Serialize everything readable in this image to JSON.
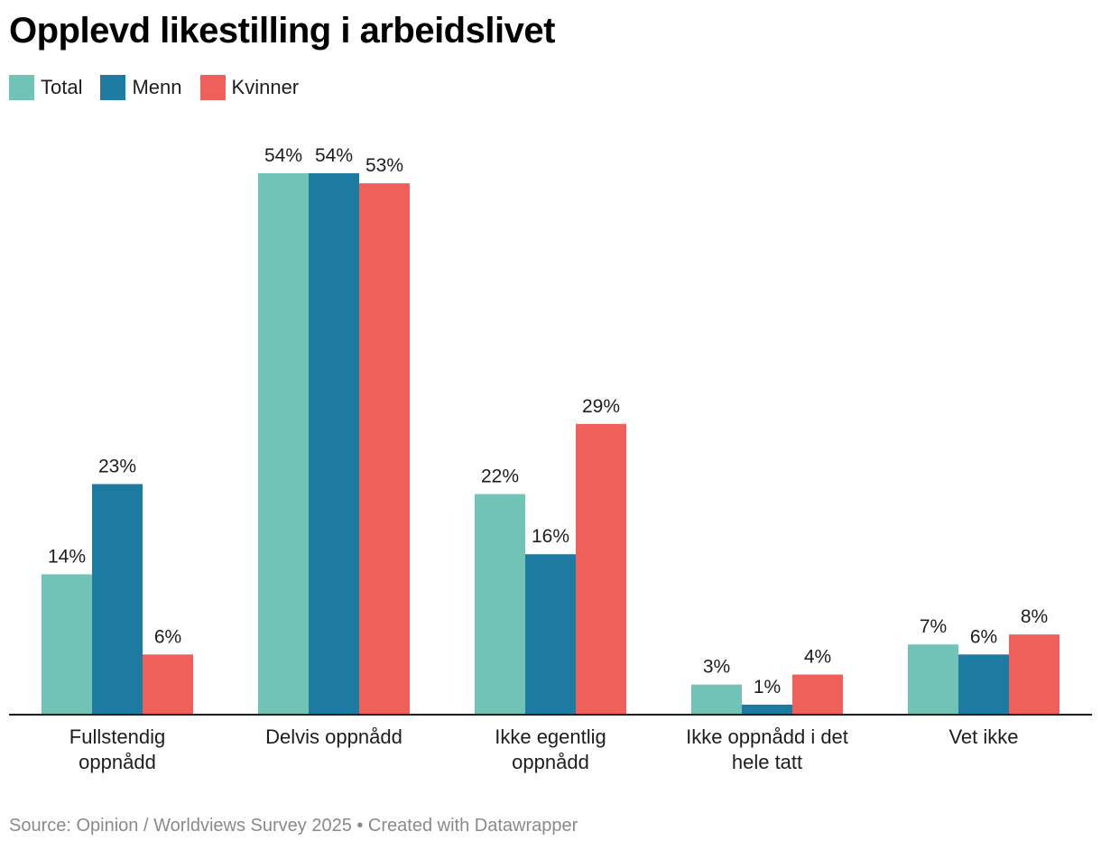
{
  "chart_data": {
    "type": "bar",
    "title": "Opplevd likestilling i arbeidslivet",
    "categories": [
      [
        "Fullstendig",
        "oppnådd"
      ],
      [
        "Delvis oppnådd"
      ],
      [
        "Ikke egentlig",
        "oppnådd"
      ],
      [
        "Ikke oppnådd i det",
        "hele tatt"
      ],
      [
        "Vet ikke"
      ]
    ],
    "series": [
      {
        "name": "Total",
        "color": "#71c4b5",
        "values": [
          14,
          54,
          22,
          3,
          7
        ]
      },
      {
        "name": "Menn",
        "color": "#1d7aa1",
        "values": [
          23,
          54,
          16,
          1,
          6
        ]
      },
      {
        "name": "Kvinner",
        "color": "#f0605b",
        "values": [
          6,
          53,
          29,
          4,
          8
        ]
      }
    ],
    "value_suffix": "%",
    "ylim": [
      0,
      54
    ],
    "xlabel": "",
    "ylabel": "",
    "grid": false,
    "legend": "top-left"
  },
  "footer": {
    "source": "Source: Opinion / Worldviews Survey 2025 • Created with Datawrapper"
  }
}
